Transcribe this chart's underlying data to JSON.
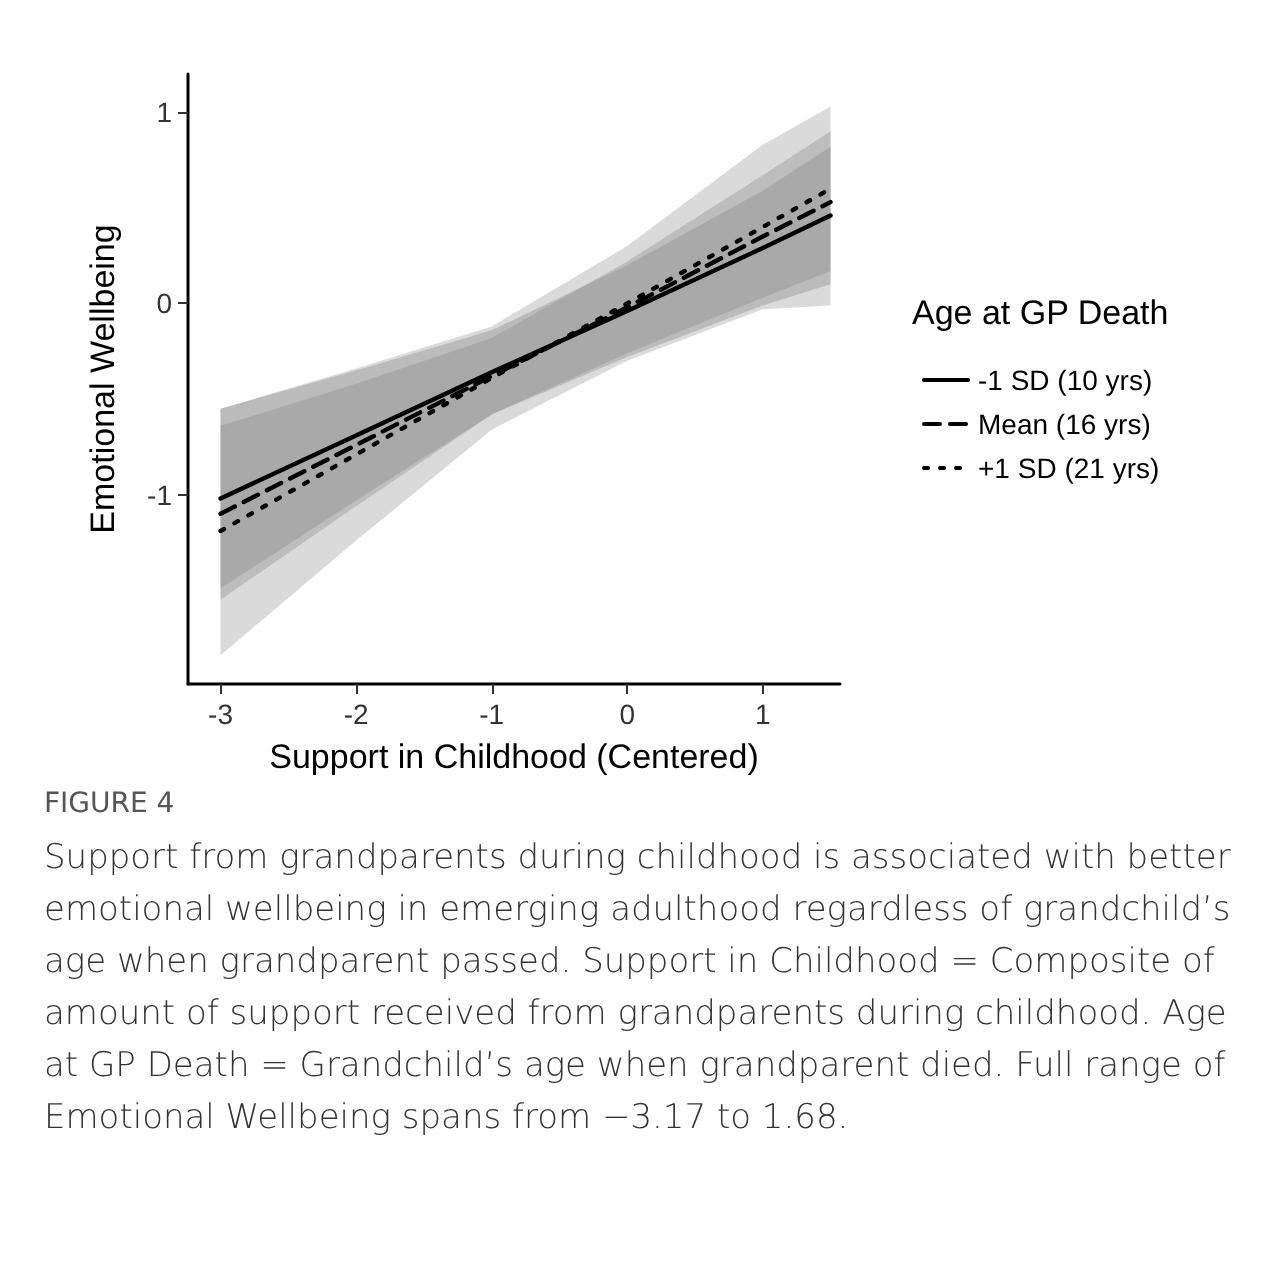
{
  "chart_data": {
    "type": "line",
    "xlabel": "Support in Childhood (Centered)",
    "ylabel": "Emotional Wellbeing",
    "legend_title": "Age at GP Death",
    "legend": "right",
    "grid": false,
    "marker": "none",
    "xlim": [
      -3.24,
      1.57
    ],
    "xticks": [
      -3,
      -2,
      -1,
      0,
      1
    ],
    "ylim": [
      -1.99,
      1.2
    ],
    "yticks": [
      -1,
      0,
      1
    ],
    "x": [
      -3,
      -2,
      -1,
      0,
      1,
      1.5
    ],
    "series": [
      {
        "name": "-1 SD (10 yrs)",
        "color": "#000000",
        "line_style": "solid",
        "values": [
          -1.02,
          -0.69,
          -0.36,
          -0.04,
          0.29,
          0.46
        ],
        "lower": [
          -1.49,
          -1.03,
          -0.58,
          -0.28,
          -0.01,
          0.1
        ],
        "upper": [
          -0.55,
          -0.35,
          -0.14,
          0.2,
          0.59,
          0.82
        ]
      },
      {
        "name": "Mean (16 yrs)",
        "color": "#000000",
        "line_style": "dashed",
        "values": [
          -1.1,
          -0.74,
          -0.38,
          -0.02,
          0.35,
          0.53
        ],
        "lower": [
          -1.55,
          -1.06,
          -0.58,
          -0.26,
          0.03,
          0.17
        ],
        "upper": [
          -0.64,
          -0.42,
          -0.18,
          0.22,
          0.67,
          0.9
        ]
      },
      {
        "name": "+1 SD (21 yrs)",
        "color": "#000000",
        "line_style": "dotted",
        "values": [
          -1.19,
          -0.79,
          -0.39,
          0.0,
          0.4,
          0.6
        ],
        "lower": [
          -1.84,
          -1.24,
          -0.66,
          -0.3,
          -0.03,
          -0.01
        ],
        "upper": [
          -0.55,
          -0.34,
          -0.12,
          0.3,
          0.83,
          1.03
        ]
      }
    ],
    "annotations": [
      "FIGURE 4",
      "Support from grandparents during childhood is associated with better emotional wellbeing in emerging adulthood regardless of grandchild’s age when grandparent passed. Support in Childhood = Composite of amount of support received from grandparents during childhood. Age at GP Death = Grandchild’s age when grandparent died. Full range of Emotional Wellbeing spans from −3.17 to 1.68."
    ]
  }
}
